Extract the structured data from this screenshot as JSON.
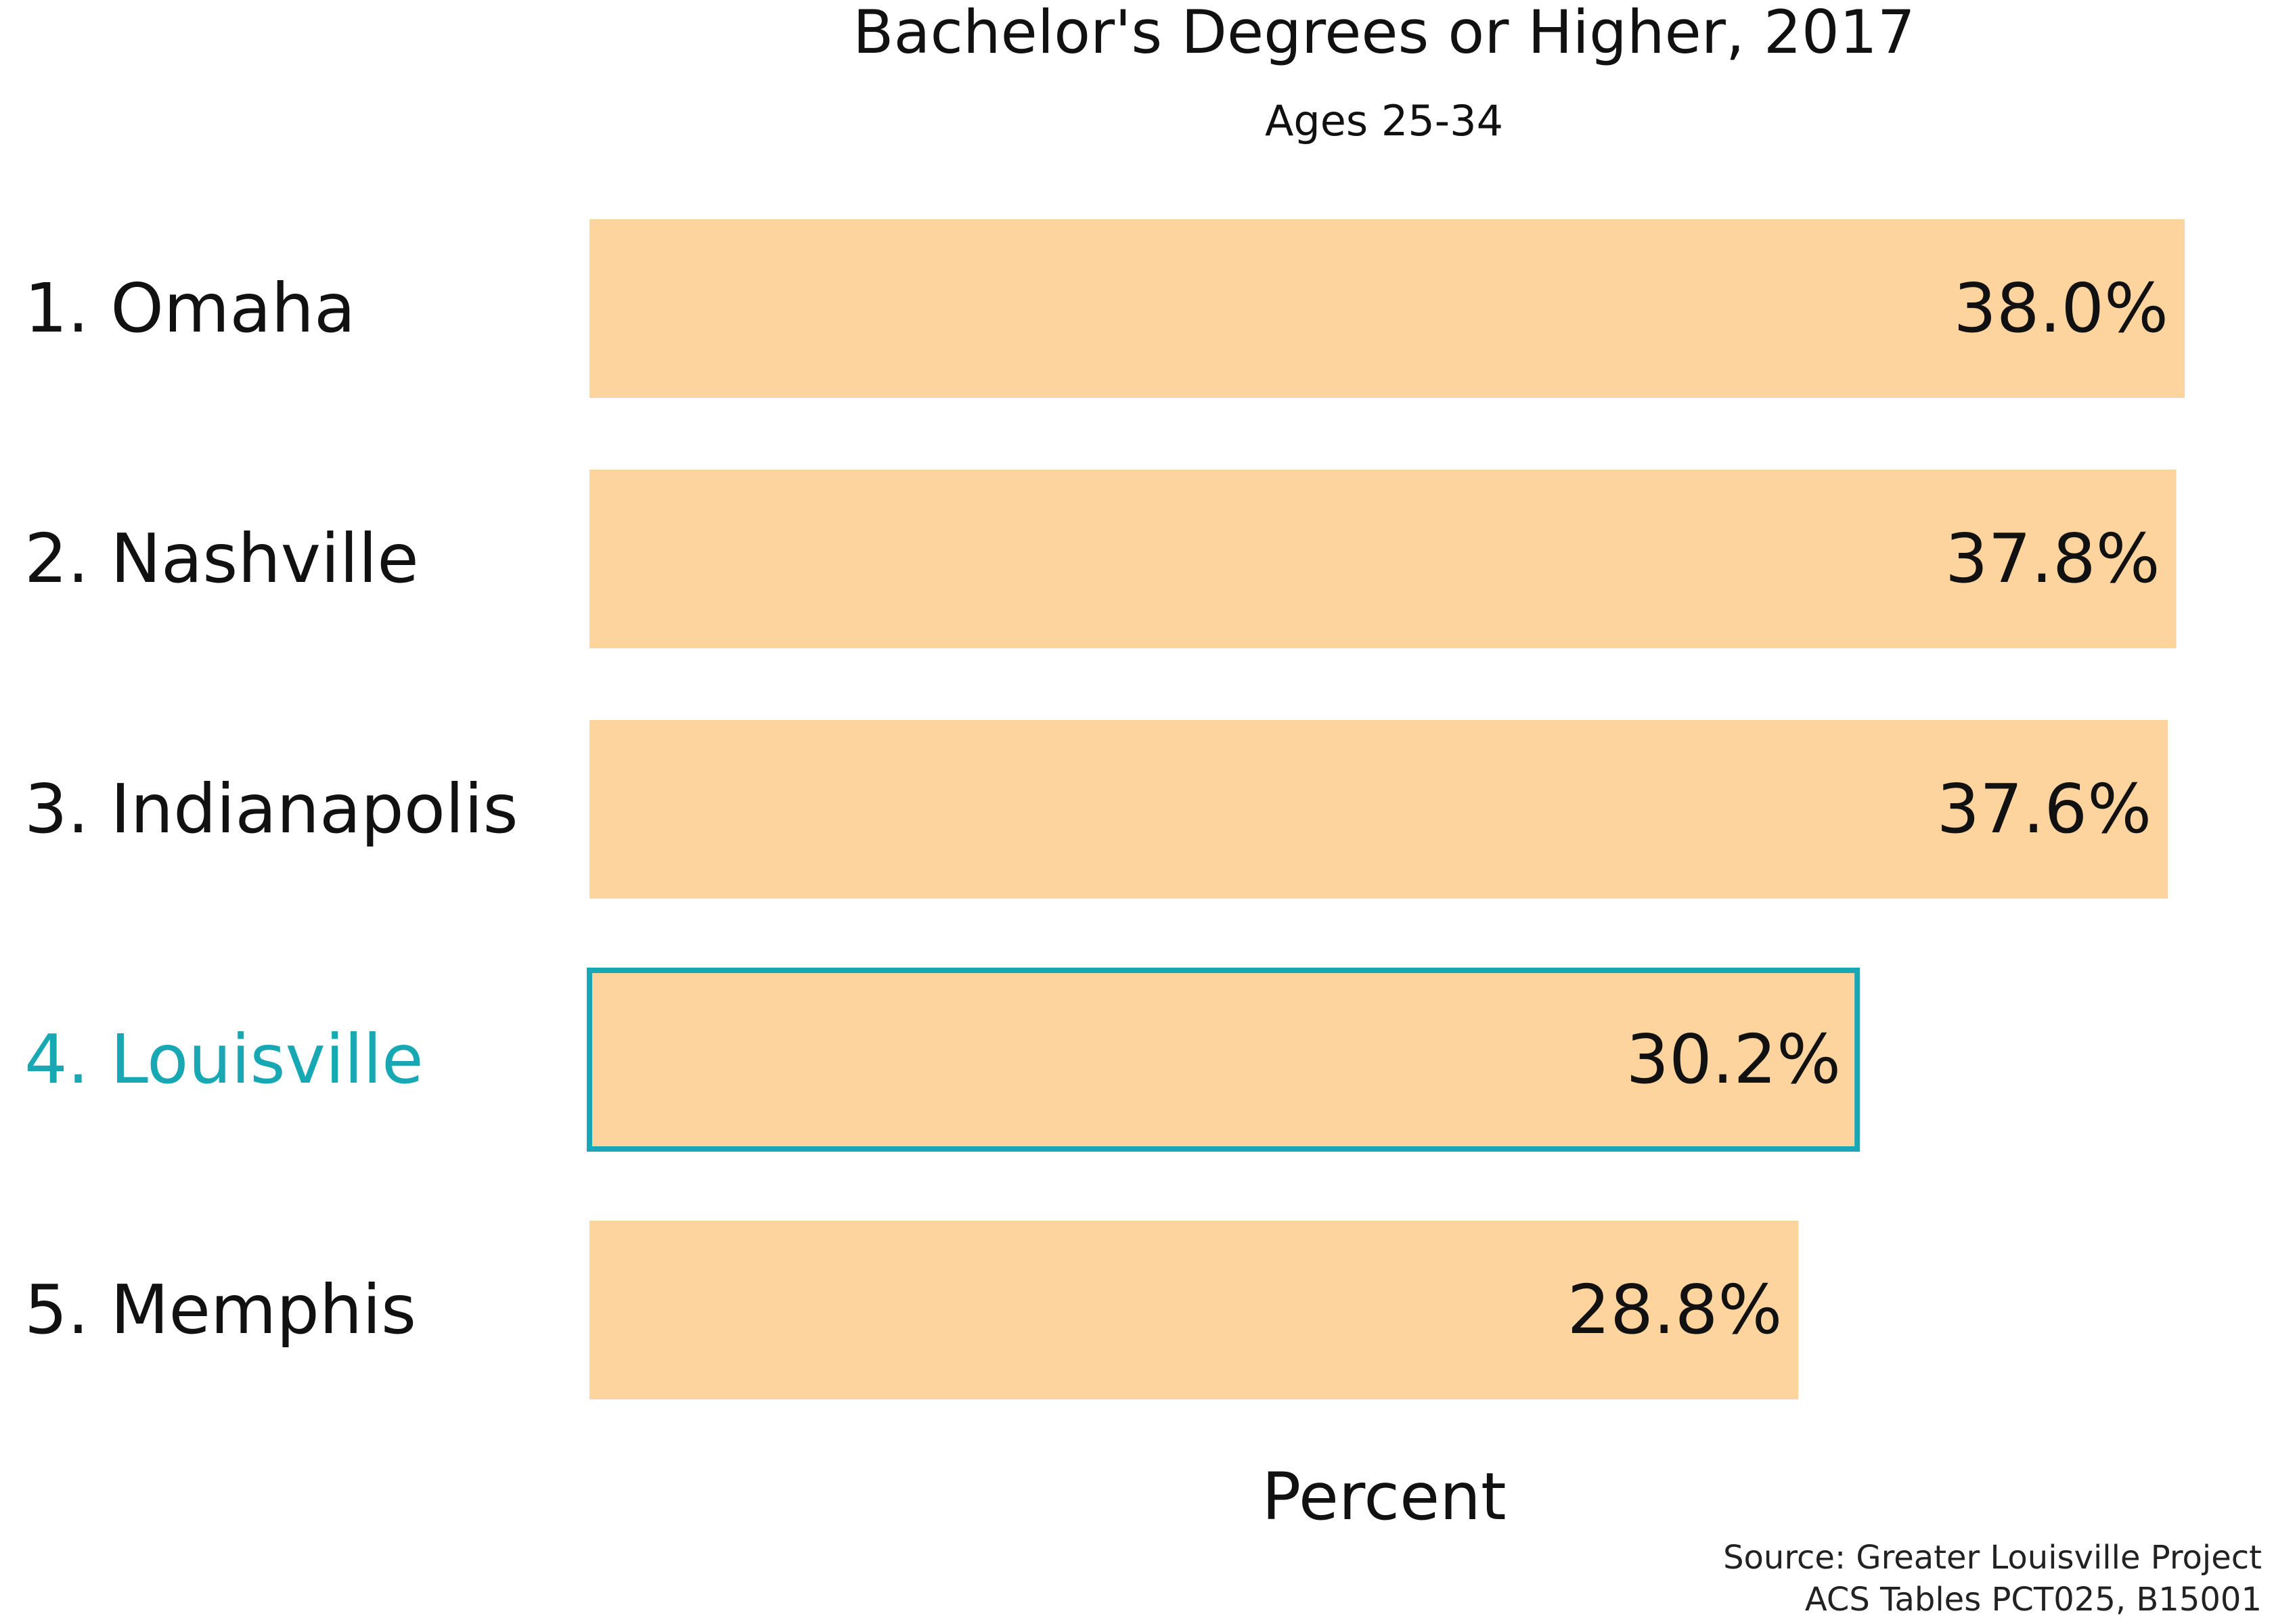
{
  "chart_data": {
    "type": "bar",
    "orientation": "horizontal",
    "title": "Bachelor's Degrees or Higher, 2017",
    "subtitle": "Ages 25-34",
    "xlabel": "Percent",
    "ylabel": "",
    "categories": [
      "1. Omaha",
      "2. Nashville",
      "3. Indianapolis",
      "4. Louisville",
      "5. Memphis"
    ],
    "values": [
      38.0,
      37.8,
      37.6,
      30.2,
      28.8
    ],
    "value_labels": [
      "38.0%",
      "37.8%",
      "37.6%",
      "30.2%",
      "28.8%"
    ],
    "highlight_category": "4. Louisville",
    "xlim": [
      0,
      38.0
    ],
    "grid": false,
    "legend": "none",
    "colors": {
      "bar_fill": "#fdd49e",
      "highlight_outline": "#17a8b4",
      "highlight_label": "#17a8b4",
      "text": "#111111"
    }
  },
  "source": {
    "line1": "Source: Greater Louisville Project",
    "line2": "ACS Tables PCT025, B15001"
  }
}
